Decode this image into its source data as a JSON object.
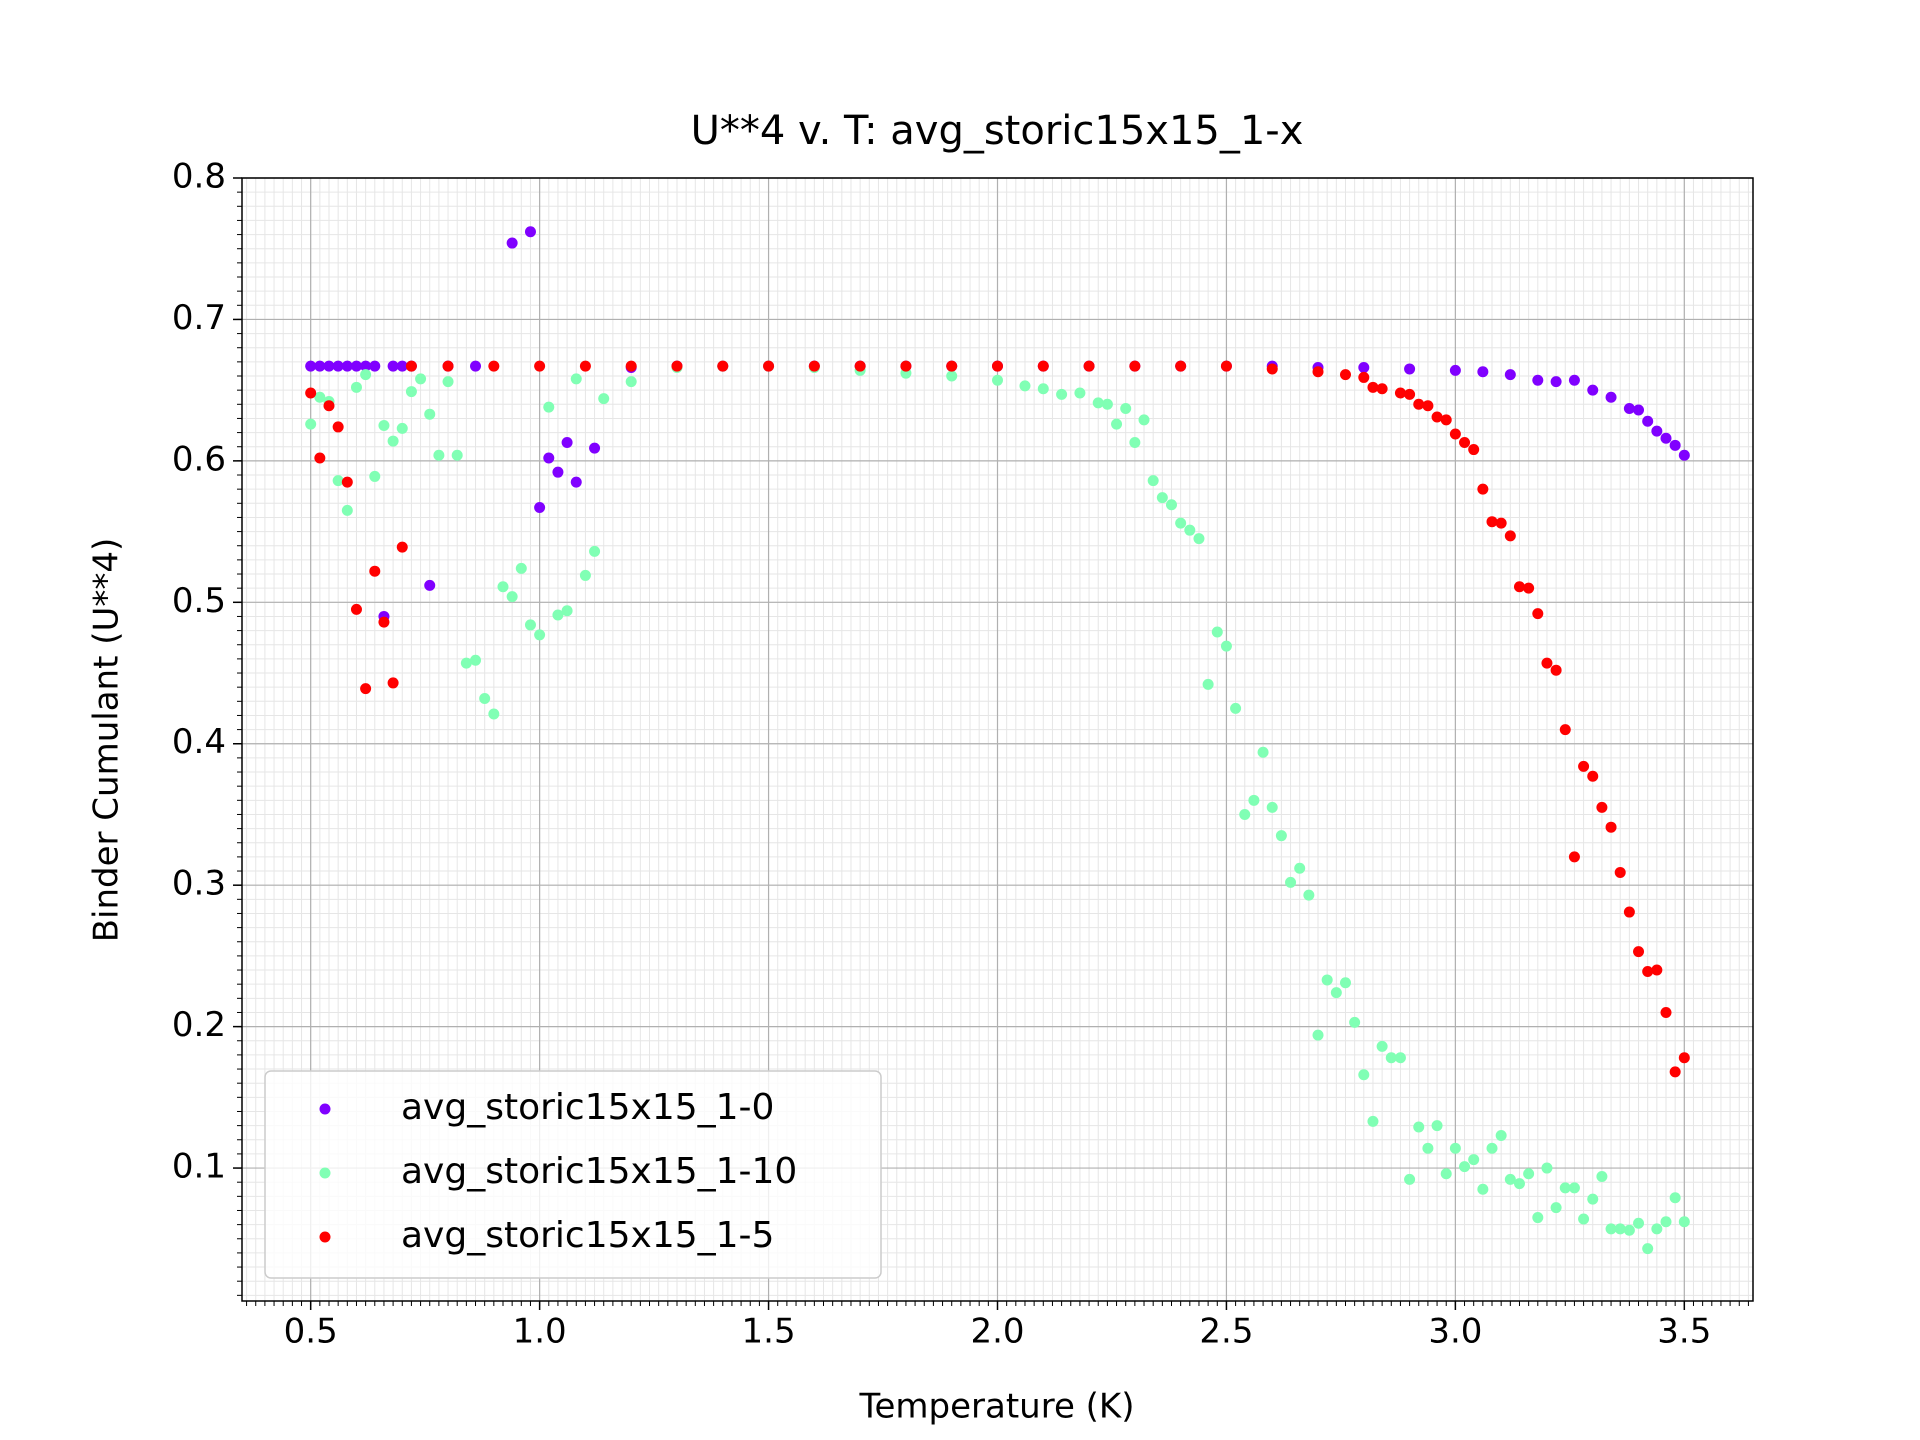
{
  "chart_data": {
    "type": "scatter",
    "title": "U**4 v. T: avg_storic15x15_1-x",
    "x_label": "Temperature (K)",
    "y_label": "Binder Cumulant (U**4)",
    "xlim": [
      0.35,
      3.65
    ],
    "ylim": [
      0.006,
      0.8
    ],
    "xticks": [
      0.5,
      {
        "value": 1.0,
        "label": "1.0"
      },
      1.5,
      {
        "value": 2.0,
        "label": "2.0"
      },
      2.5,
      {
        "value": 3.0,
        "label": "3.0"
      },
      3.5
    ],
    "yticks": [
      0.1,
      0.2,
      0.3,
      0.4,
      0.5,
      0.6,
      0.7,
      0.8
    ],
    "grid": true,
    "minor_grid": true,
    "legend": "lower left",
    "series": [
      {
        "name": "avg_storic15x15_1-0",
        "color": "#8000ff",
        "x": [
          0.5,
          0.52,
          0.54,
          0.56,
          0.58,
          0.6,
          0.62,
          0.64,
          0.66,
          0.68,
          0.7,
          0.72,
          0.76,
          0.8,
          0.86,
          0.94,
          0.98,
          1.0,
          1.02,
          1.04,
          1.06,
          1.08,
          1.12,
          1.2,
          1.3,
          1.4,
          1.5,
          1.6,
          1.7,
          1.8,
          1.9,
          2.0,
          2.1,
          2.2,
          2.3,
          2.4,
          2.5,
          2.6,
          2.7,
          2.8,
          2.9,
          3.0,
          3.06,
          3.12,
          3.18,
          3.22,
          3.26,
          3.3,
          3.34,
          3.38,
          3.4,
          3.42,
          3.44,
          3.46,
          3.48,
          3.5
        ],
        "values": [
          0.667,
          0.667,
          0.667,
          0.667,
          0.667,
          0.667,
          0.667,
          0.667,
          0.49,
          0.667,
          0.667,
          0.667,
          0.512,
          0.667,
          0.667,
          0.754,
          0.762,
          0.567,
          0.602,
          0.592,
          0.613,
          0.585,
          0.609,
          0.666,
          0.667,
          0.667,
          0.667,
          0.667,
          0.667,
          0.667,
          0.667,
          0.667,
          0.667,
          0.667,
          0.667,
          0.667,
          0.667,
          0.667,
          0.666,
          0.666,
          0.665,
          0.664,
          0.663,
          0.661,
          0.657,
          0.656,
          0.657,
          0.65,
          0.645,
          0.637,
          0.636,
          0.628,
          0.621,
          0.616,
          0.611,
          0.604
        ]
      },
      {
        "name": "avg_storic15x15_1-10",
        "color": "#80ffb4",
        "x": [
          0.5,
          0.52,
          0.54,
          0.56,
          0.58,
          0.6,
          0.62,
          0.64,
          0.66,
          0.68,
          0.7,
          0.72,
          0.74,
          0.76,
          0.78,
          0.8,
          0.82,
          0.84,
          0.86,
          0.88,
          0.9,
          0.92,
          0.94,
          0.96,
          0.98,
          1.0,
          1.02,
          1.04,
          1.06,
          1.08,
          1.1,
          1.12,
          1.14,
          1.2,
          1.3,
          1.4,
          1.5,
          1.6,
          1.7,
          1.8,
          1.9,
          2.0,
          2.06,
          2.1,
          2.14,
          2.18,
          2.22,
          2.24,
          2.26,
          2.28,
          2.3,
          2.32,
          2.34,
          2.36,
          2.38,
          2.4,
          2.42,
          2.44,
          2.46,
          2.48,
          2.5,
          2.52,
          2.54,
          2.56,
          2.58,
          2.6,
          2.62,
          2.64,
          2.66,
          2.68,
          2.7,
          2.72,
          2.74,
          2.76,
          2.78,
          2.8,
          2.82,
          2.84,
          2.86,
          2.88,
          2.9,
          2.92,
          2.94,
          2.96,
          2.98,
          3.0,
          3.02,
          3.04,
          3.06,
          3.08,
          3.1,
          3.12,
          3.14,
          3.16,
          3.18,
          3.2,
          3.22,
          3.24,
          3.26,
          3.28,
          3.3,
          3.32,
          3.34,
          3.36,
          3.38,
          3.4,
          3.42,
          3.44,
          3.46,
          3.48,
          3.5
        ],
        "values": [
          0.626,
          0.645,
          0.642,
          0.586,
          0.565,
          0.652,
          0.661,
          0.589,
          0.625,
          0.614,
          0.623,
          0.649,
          0.658,
          0.633,
          0.604,
          0.656,
          0.604,
          0.457,
          0.459,
          0.432,
          0.421,
          0.511,
          0.504,
          0.524,
          0.484,
          0.477,
          0.638,
          0.491,
          0.494,
          0.658,
          0.519,
          0.536,
          0.644,
          0.656,
          0.666,
          0.667,
          0.667,
          0.666,
          0.664,
          0.662,
          0.66,
          0.657,
          0.653,
          0.651,
          0.647,
          0.648,
          0.641,
          0.64,
          0.626,
          0.637,
          0.613,
          0.629,
          0.586,
          0.574,
          0.569,
          0.556,
          0.551,
          0.545,
          0.442,
          0.479,
          0.469,
          0.425,
          0.35,
          0.36,
          0.394,
          0.355,
          0.335,
          0.302,
          0.312,
          0.293,
          0.194,
          0.233,
          0.224,
          0.231,
          0.203,
          0.166,
          0.133,
          0.186,
          0.178,
          0.178,
          0.092,
          0.129,
          0.114,
          0.13,
          0.096,
          0.114,
          0.101,
          0.106,
          0.085,
          0.114,
          0.123,
          0.092,
          0.089,
          0.096,
          0.065,
          0.1,
          0.072,
          0.086,
          0.086,
          0.064,
          0.078,
          0.094,
          0.057,
          0.057,
          0.056,
          0.061,
          0.043,
          0.057,
          0.062,
          0.079,
          0.062
        ]
      },
      {
        "name": "avg_storic15x15_1-5",
        "color": "#ff0000",
        "x": [
          0.5,
          0.52,
          0.54,
          0.56,
          0.58,
          0.6,
          0.62,
          0.64,
          0.66,
          0.68,
          0.7,
          0.72,
          0.8,
          0.9,
          1.0,
          1.1,
          1.2,
          1.3,
          1.4,
          1.5,
          1.6,
          1.7,
          1.8,
          1.9,
          2.0,
          2.1,
          2.2,
          2.3,
          2.4,
          2.5,
          2.6,
          2.7,
          2.76,
          2.8,
          2.82,
          2.84,
          2.88,
          2.9,
          2.92,
          2.94,
          2.96,
          2.98,
          3.0,
          3.02,
          3.04,
          3.06,
          3.08,
          3.1,
          3.12,
          3.14,
          3.16,
          3.18,
          3.2,
          3.22,
          3.24,
          3.26,
          3.28,
          3.3,
          3.32,
          3.34,
          3.36,
          3.38,
          3.4,
          3.42,
          3.44,
          3.46,
          3.48,
          3.5
        ],
        "values": [
          0.648,
          0.602,
          0.639,
          0.624,
          0.585,
          0.495,
          0.439,
          0.522,
          0.486,
          0.443,
          0.539,
          0.667,
          0.667,
          0.667,
          0.667,
          0.667,
          0.667,
          0.667,
          0.667,
          0.667,
          0.667,
          0.667,
          0.667,
          0.667,
          0.667,
          0.667,
          0.667,
          0.667,
          0.667,
          0.667,
          0.665,
          0.663,
          0.661,
          0.659,
          0.652,
          0.651,
          0.648,
          0.647,
          0.64,
          0.639,
          0.631,
          0.629,
          0.619,
          0.613,
          0.608,
          0.58,
          0.557,
          0.556,
          0.547,
          0.511,
          0.51,
          0.492,
          0.457,
          0.452,
          0.41,
          0.32,
          0.384,
          0.377,
          0.355,
          0.341,
          0.309,
          0.281,
          0.253,
          0.239,
          0.24,
          0.21,
          0.168,
          0.178
        ]
      }
    ]
  }
}
